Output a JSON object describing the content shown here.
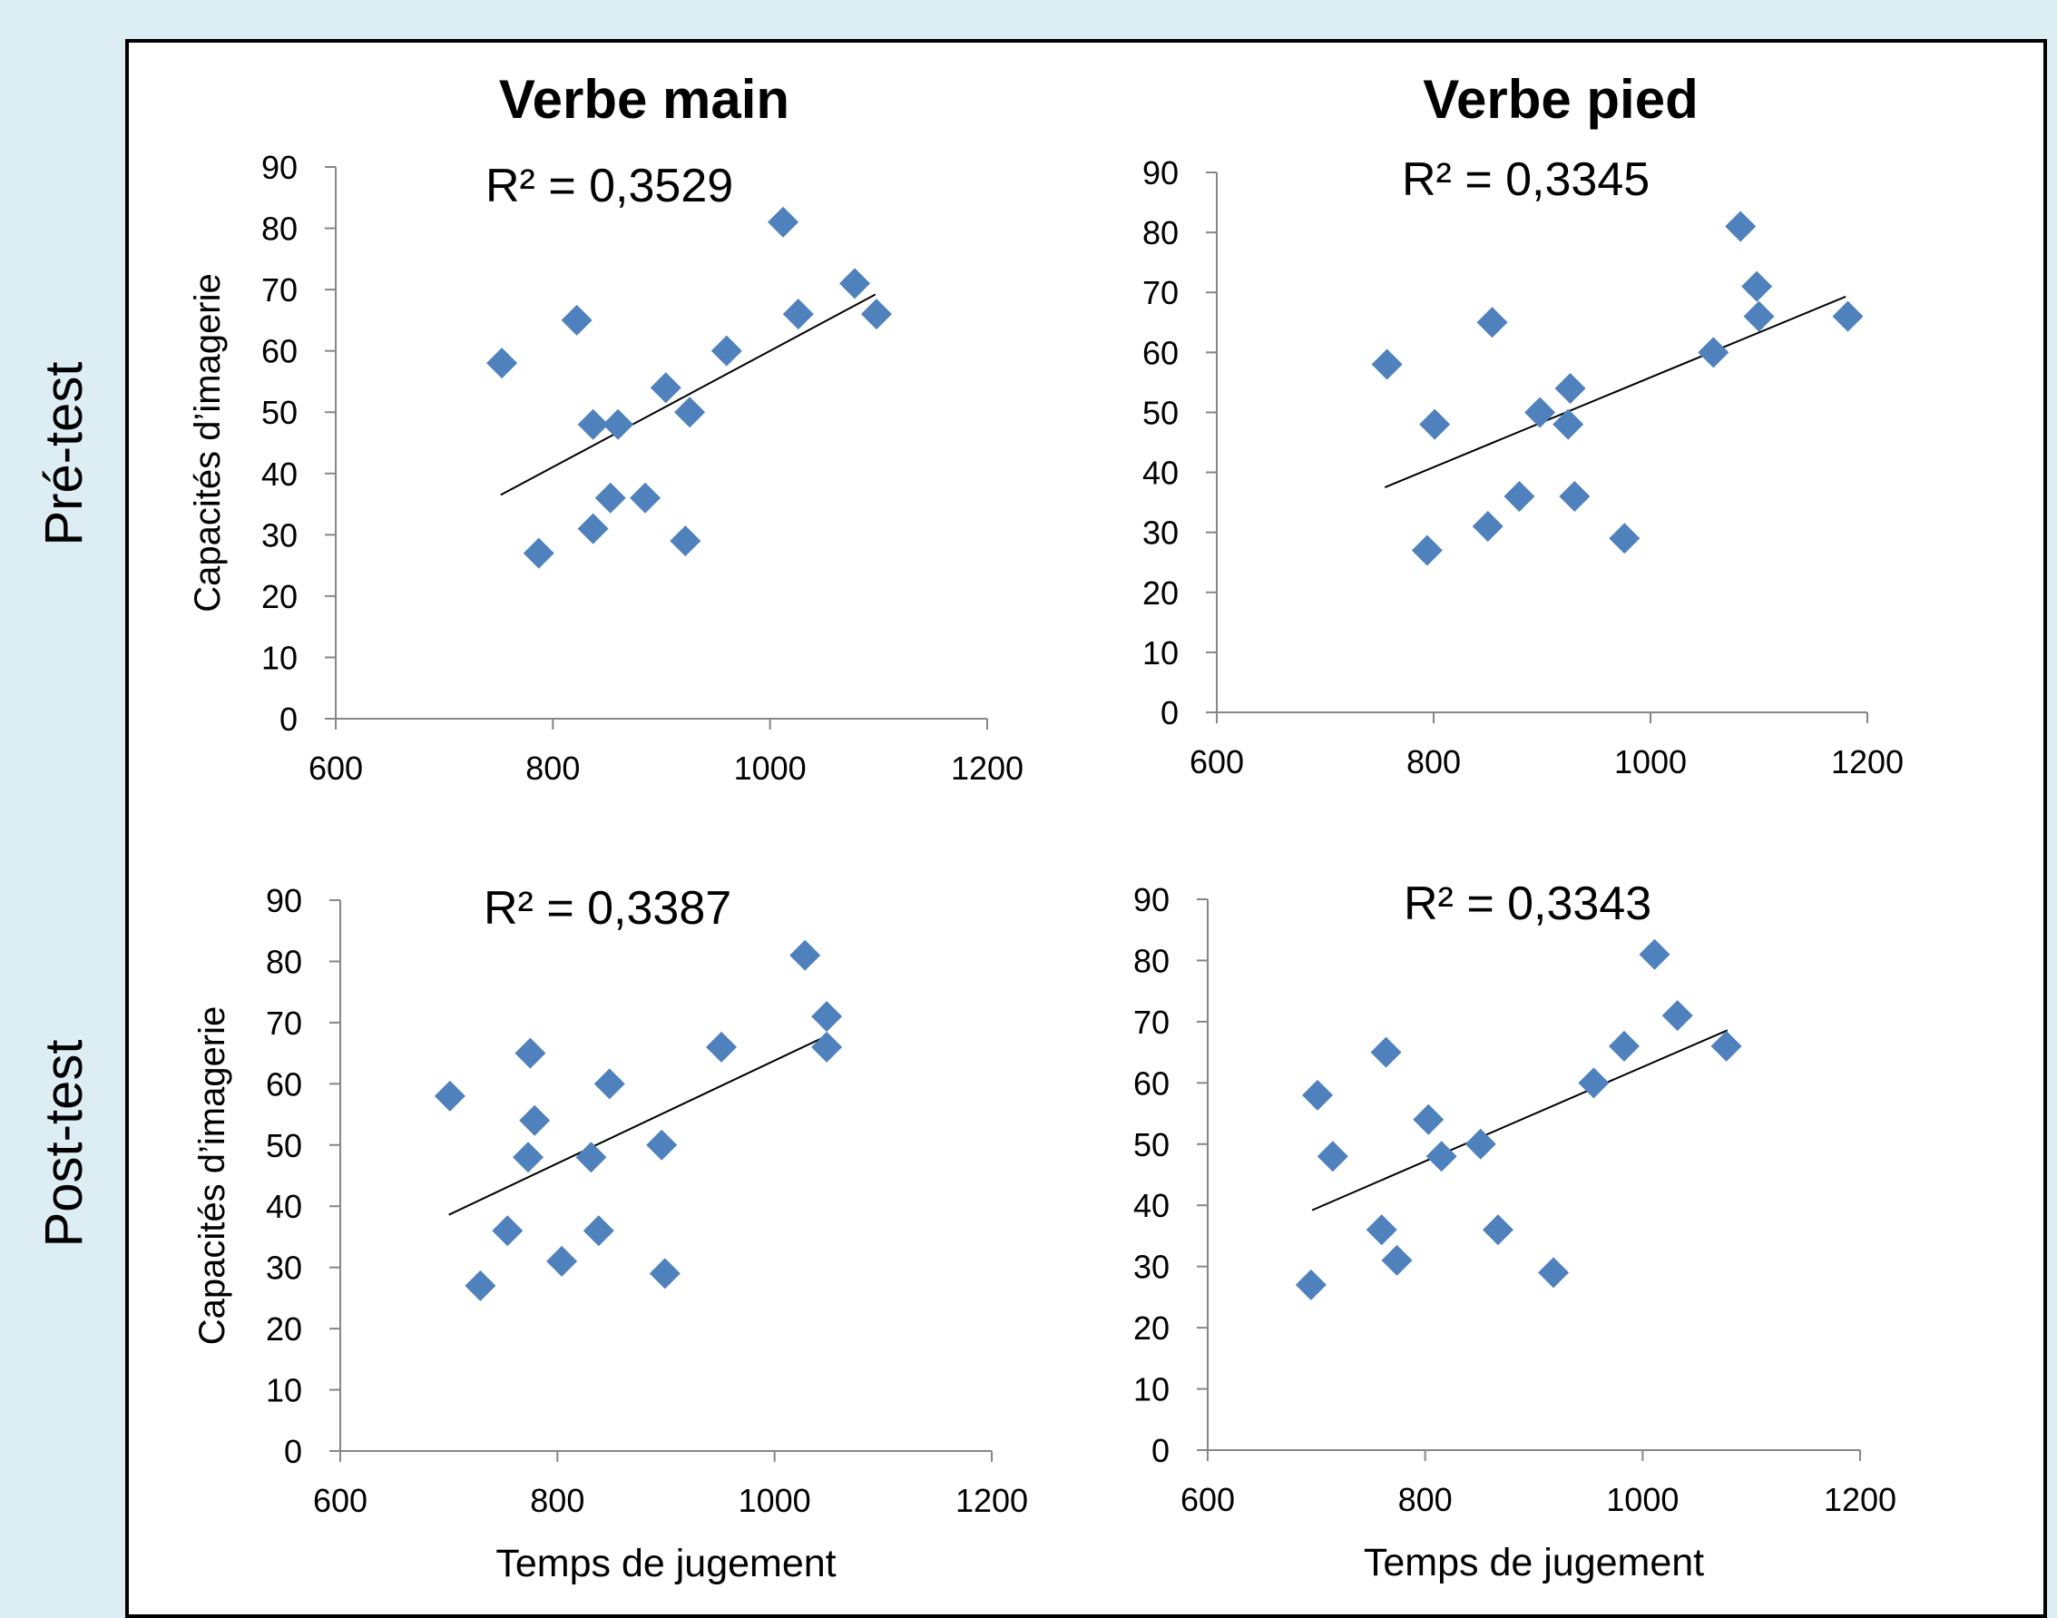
{
  "row_labels": [
    "Pré-test",
    "Post-test"
  ],
  "colors": {
    "marker": "#4f81bd",
    "trend": "#000000",
    "background": "#dcedf3",
    "panel": "#ffffff"
  },
  "chart_data": [
    {
      "type": "scatter",
      "title": "Verbe main",
      "row": "Pré-test",
      "ylabel": "Capacités d’imagerie",
      "xlabel": "",
      "xlim": [
        600,
        1200
      ],
      "ylim": [
        0,
        90
      ],
      "xticks": [
        600,
        800,
        1000,
        1200
      ],
      "yticks": [
        0,
        10,
        20,
        30,
        40,
        50,
        60,
        70,
        80,
        90
      ],
      "annotation": "R² = 0,3529",
      "trendline": {
        "x": [
          752,
          1097
        ],
        "y": [
          36.5,
          69.2
        ]
      },
      "points": [
        {
          "x": 753,
          "y": 58
        },
        {
          "x": 787,
          "y": 27
        },
        {
          "x": 822,
          "y": 65
        },
        {
          "x": 837,
          "y": 48
        },
        {
          "x": 837,
          "y": 31
        },
        {
          "x": 853,
          "y": 36
        },
        {
          "x": 860,
          "y": 48
        },
        {
          "x": 885,
          "y": 36
        },
        {
          "x": 904,
          "y": 54
        },
        {
          "x": 922,
          "y": 29
        },
        {
          "x": 926,
          "y": 50
        },
        {
          "x": 960,
          "y": 60
        },
        {
          "x": 1012,
          "y": 81
        },
        {
          "x": 1026,
          "y": 66
        },
        {
          "x": 1078,
          "y": 71
        },
        {
          "x": 1098,
          "y": 66
        }
      ]
    },
    {
      "type": "scatter",
      "title": "Verbe pied",
      "row": "Pré-test",
      "ylabel": "",
      "xlabel": "",
      "xlim": [
        600,
        1200
      ],
      "ylim": [
        0,
        90
      ],
      "xticks": [
        600,
        800,
        1000,
        1200
      ],
      "yticks": [
        0,
        10,
        20,
        30,
        40,
        50,
        60,
        70,
        80,
        90
      ],
      "annotation": "R² = 0,3345",
      "trendline": {
        "x": [
          755,
          1180
        ],
        "y": [
          37.5,
          69.3
        ]
      },
      "points": [
        {
          "x": 757,
          "y": 58
        },
        {
          "x": 794,
          "y": 27
        },
        {
          "x": 801,
          "y": 48
        },
        {
          "x": 850,
          "y": 31
        },
        {
          "x": 854,
          "y": 65
        },
        {
          "x": 879,
          "y": 36
        },
        {
          "x": 898,
          "y": 50
        },
        {
          "x": 924,
          "y": 48
        },
        {
          "x": 926,
          "y": 54
        },
        {
          "x": 930,
          "y": 36
        },
        {
          "x": 976,
          "y": 29
        },
        {
          "x": 1058,
          "y": 60
        },
        {
          "x": 1083,
          "y": 81
        },
        {
          "x": 1098,
          "y": 71
        },
        {
          "x": 1100,
          "y": 66
        },
        {
          "x": 1182,
          "y": 66
        }
      ]
    },
    {
      "type": "scatter",
      "title": "",
      "row": "Post-test",
      "ylabel": "Capacités d’imagerie",
      "xlabel": "Temps de jugement",
      "xlim": [
        600,
        1200
      ],
      "ylim": [
        0,
        90
      ],
      "xticks": [
        600,
        800,
        1000,
        1200
      ],
      "yticks": [
        0,
        10,
        20,
        30,
        40,
        50,
        60,
        70,
        80,
        90
      ],
      "annotation": "R² = 0,3387",
      "trendline": {
        "x": [
          700,
          1050
        ],
        "y": [
          38.6,
          68.0
        ]
      },
      "points": [
        {
          "x": 701,
          "y": 58
        },
        {
          "x": 729,
          "y": 27
        },
        {
          "x": 754,
          "y": 36
        },
        {
          "x": 773,
          "y": 48
        },
        {
          "x": 775,
          "y": 65
        },
        {
          "x": 779,
          "y": 54
        },
        {
          "x": 804,
          "y": 31
        },
        {
          "x": 831,
          "y": 48
        },
        {
          "x": 838,
          "y": 36
        },
        {
          "x": 848,
          "y": 60
        },
        {
          "x": 896,
          "y": 50
        },
        {
          "x": 899,
          "y": 29
        },
        {
          "x": 951,
          "y": 66
        },
        {
          "x": 1028,
          "y": 81
        },
        {
          "x": 1048,
          "y": 71
        },
        {
          "x": 1048,
          "y": 66
        }
      ]
    },
    {
      "type": "scatter",
      "title": "",
      "row": "Post-test",
      "ylabel": "",
      "xlabel": "Temps de jugement",
      "xlim": [
        600,
        1200
      ],
      "ylim": [
        0,
        90
      ],
      "xticks": [
        600,
        800,
        1000,
        1200
      ],
      "yticks": [
        0,
        10,
        20,
        30,
        40,
        50,
        60,
        70,
        80,
        90
      ],
      "annotation": "R² = 0,3343",
      "trendline": {
        "x": [
          696,
          1078
        ],
        "y": [
          39.2,
          68.6
        ]
      },
      "points": [
        {
          "x": 695,
          "y": 27
        },
        {
          "x": 701,
          "y": 58
        },
        {
          "x": 715,
          "y": 48
        },
        {
          "x": 760,
          "y": 36
        },
        {
          "x": 764,
          "y": 65
        },
        {
          "x": 774,
          "y": 31
        },
        {
          "x": 803,
          "y": 54
        },
        {
          "x": 815,
          "y": 48
        },
        {
          "x": 851,
          "y": 50
        },
        {
          "x": 867,
          "y": 36
        },
        {
          "x": 918,
          "y": 29
        },
        {
          "x": 955,
          "y": 60
        },
        {
          "x": 983,
          "y": 66
        },
        {
          "x": 1011,
          "y": 81
        },
        {
          "x": 1032,
          "y": 71
        },
        {
          "x": 1077,
          "y": 66
        }
      ]
    }
  ]
}
